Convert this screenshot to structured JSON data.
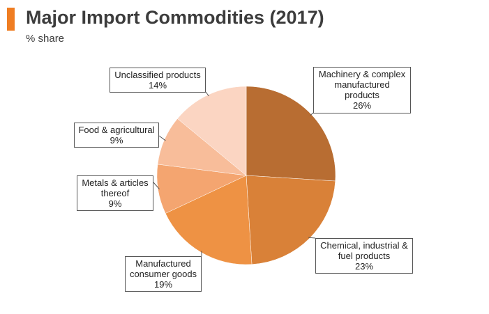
{
  "header": {
    "title": "Major Import Commodities (2017)",
    "subtitle": "% share",
    "accent_color": "#ef7d22"
  },
  "chart_data": {
    "type": "pie",
    "slices": [
      {
        "label": [
          "Machinery & complex",
          "manufactured",
          "products"
        ],
        "value": 26,
        "value_label": "26%",
        "color": "#b86d32"
      },
      {
        "label": [
          "Chemical, industrial &",
          "fuel products"
        ],
        "value": 23,
        "value_label": "23%",
        "color": "#d98138"
      },
      {
        "label": [
          "Manufactured",
          "consumer goods"
        ],
        "value": 19,
        "value_label": "19%",
        "color": "#ee9244"
      },
      {
        "label": [
          "Metals & articles",
          "thereof"
        ],
        "value": 9,
        "value_label": "9%",
        "color": "#f4a570"
      },
      {
        "label": [
          "Food & agricultural"
        ],
        "value": 9,
        "value_label": "9%",
        "color": "#f8bd9a"
      },
      {
        "label": [
          "Unclassified products"
        ],
        "value": 14,
        "value_label": "14%",
        "color": "#fbd5c2"
      }
    ]
  }
}
